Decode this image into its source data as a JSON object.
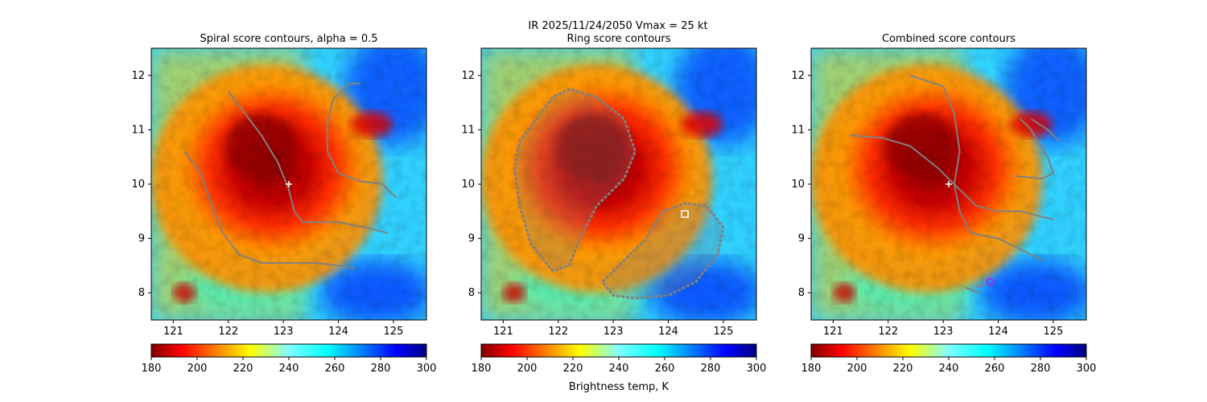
{
  "suptitle": "IR  2025/11/24/2050    Vmax = 25 kt",
  "colorbar": {
    "label": "Brightness temp, K",
    "range": [
      180,
      300
    ],
    "ticks": [
      "180",
      "200",
      "220",
      "240",
      "260",
      "280",
      "300"
    ],
    "colormap": "jet"
  },
  "colors": {
    "contour": "#808080",
    "center_marker": "#ffffff",
    "ring_marker": "#ffffff",
    "combined_marker": "#9b30ff"
  },
  "chart_data": [
    {
      "type": "heatmap",
      "title": "Spiral score contours, alpha =  0.5",
      "xlim": [
        120.6,
        125.6
      ],
      "ylim": [
        7.5,
        12.5
      ],
      "xticks": [
        "121",
        "122",
        "123",
        "124",
        "125"
      ],
      "yticks": [
        "8",
        "9",
        "10",
        "11",
        "12"
      ],
      "center": {
        "lon": 123.1,
        "lat": 10.0,
        "marker": "+"
      },
      "contours": [
        [
          [
            121.2,
            10.6
          ],
          [
            121.5,
            10.2
          ],
          [
            121.7,
            9.6
          ],
          [
            121.9,
            9.1
          ],
          [
            122.2,
            8.7
          ],
          [
            122.6,
            8.55
          ],
          [
            123.1,
            8.55
          ],
          [
            123.6,
            8.55
          ],
          [
            124.0,
            8.5
          ],
          [
            124.3,
            8.45
          ]
        ],
        [
          [
            122.0,
            11.7
          ],
          [
            122.3,
            11.3
          ],
          [
            122.6,
            10.9
          ],
          [
            122.9,
            10.4
          ],
          [
            123.1,
            9.9
          ],
          [
            123.2,
            9.5
          ],
          [
            123.35,
            9.3
          ],
          [
            123.6,
            9.3
          ],
          [
            124.0,
            9.3
          ],
          [
            124.5,
            9.2
          ],
          [
            124.9,
            9.1
          ]
        ],
        [
          [
            124.4,
            11.85
          ],
          [
            124.2,
            11.85
          ],
          [
            123.9,
            11.55
          ],
          [
            123.8,
            11.1
          ],
          [
            123.8,
            10.6
          ],
          [
            124.0,
            10.2
          ],
          [
            124.4,
            10.05
          ],
          [
            124.8,
            10.0
          ],
          [
            125.05,
            9.75
          ]
        ]
      ]
    },
    {
      "type": "heatmap",
      "title": "Ring score contours",
      "xlim": [
        120.6,
        125.6
      ],
      "ylim": [
        7.5,
        12.5
      ],
      "xticks": [
        "121",
        "122",
        "123",
        "124",
        "125"
      ],
      "yticks": [
        "8",
        "9",
        "10",
        "11",
        "12"
      ],
      "ring_marker": {
        "lon": 124.3,
        "lat": 9.45,
        "marker": "square"
      },
      "ring_regions": [
        [
          [
            121.6,
            11.2
          ],
          [
            121.9,
            11.6
          ],
          [
            122.2,
            11.75
          ],
          [
            122.7,
            11.6
          ],
          [
            123.2,
            11.2
          ],
          [
            123.4,
            10.6
          ],
          [
            123.2,
            10.1
          ],
          [
            122.7,
            9.6
          ],
          [
            122.4,
            9.0
          ],
          [
            122.2,
            8.5
          ],
          [
            121.9,
            8.4
          ],
          [
            121.5,
            8.9
          ],
          [
            121.3,
            9.6
          ],
          [
            121.2,
            10.3
          ],
          [
            121.3,
            10.8
          ]
        ],
        [
          [
            122.8,
            8.2
          ],
          [
            123.2,
            8.6
          ],
          [
            123.6,
            9.0
          ],
          [
            123.9,
            9.5
          ],
          [
            124.3,
            9.65
          ],
          [
            124.7,
            9.6
          ],
          [
            125.0,
            9.2
          ],
          [
            124.9,
            8.7
          ],
          [
            124.5,
            8.2
          ],
          [
            124.0,
            7.95
          ],
          [
            123.4,
            7.9
          ],
          [
            123.0,
            7.95
          ]
        ]
      ]
    },
    {
      "type": "heatmap",
      "title": "Combined score contours",
      "xlim": [
        120.6,
        125.6
      ],
      "ylim": [
        7.5,
        12.5
      ],
      "xticks": [
        "121",
        "122",
        "123",
        "124",
        "125"
      ],
      "yticks": [
        "8",
        "9",
        "10",
        "11",
        "12"
      ],
      "center": {
        "lon": 123.1,
        "lat": 10.0,
        "marker": "+"
      },
      "best_marker": {
        "lon": 123.85,
        "lat": 8.2,
        "marker": "circle"
      },
      "contours": [
        [
          [
            121.3,
            10.9
          ],
          [
            121.9,
            10.85
          ],
          [
            122.4,
            10.7
          ],
          [
            122.9,
            10.3
          ],
          [
            123.3,
            9.9
          ],
          [
            123.6,
            9.6
          ],
          [
            124.0,
            9.5
          ],
          [
            124.4,
            9.5
          ],
          [
            124.8,
            9.4
          ],
          [
            125.0,
            9.35
          ]
        ],
        [
          [
            122.4,
            12.0
          ],
          [
            122.7,
            11.9
          ],
          [
            123.0,
            11.8
          ],
          [
            123.2,
            11.3
          ],
          [
            123.3,
            10.6
          ],
          [
            123.2,
            10.0
          ],
          [
            123.3,
            9.5
          ],
          [
            123.5,
            9.1
          ],
          [
            124.0,
            9.0
          ],
          [
            124.4,
            8.8
          ],
          [
            124.8,
            8.6
          ]
        ],
        [
          [
            124.4,
            11.2
          ],
          [
            124.6,
            11.0
          ],
          [
            124.7,
            10.8
          ],
          [
            124.9,
            10.5
          ],
          [
            125.0,
            10.2
          ],
          [
            124.8,
            10.1
          ],
          [
            124.3,
            10.15
          ]
        ],
        [
          [
            124.6,
            11.2
          ],
          [
            124.9,
            11.0
          ],
          [
            125.1,
            10.8
          ]
        ],
        [
          [
            123.4,
            8.1
          ],
          [
            123.65,
            8.0
          ]
        ],
        [
          [
            123.6,
            8.1
          ],
          [
            123.75,
            8.15
          ]
        ]
      ]
    }
  ]
}
